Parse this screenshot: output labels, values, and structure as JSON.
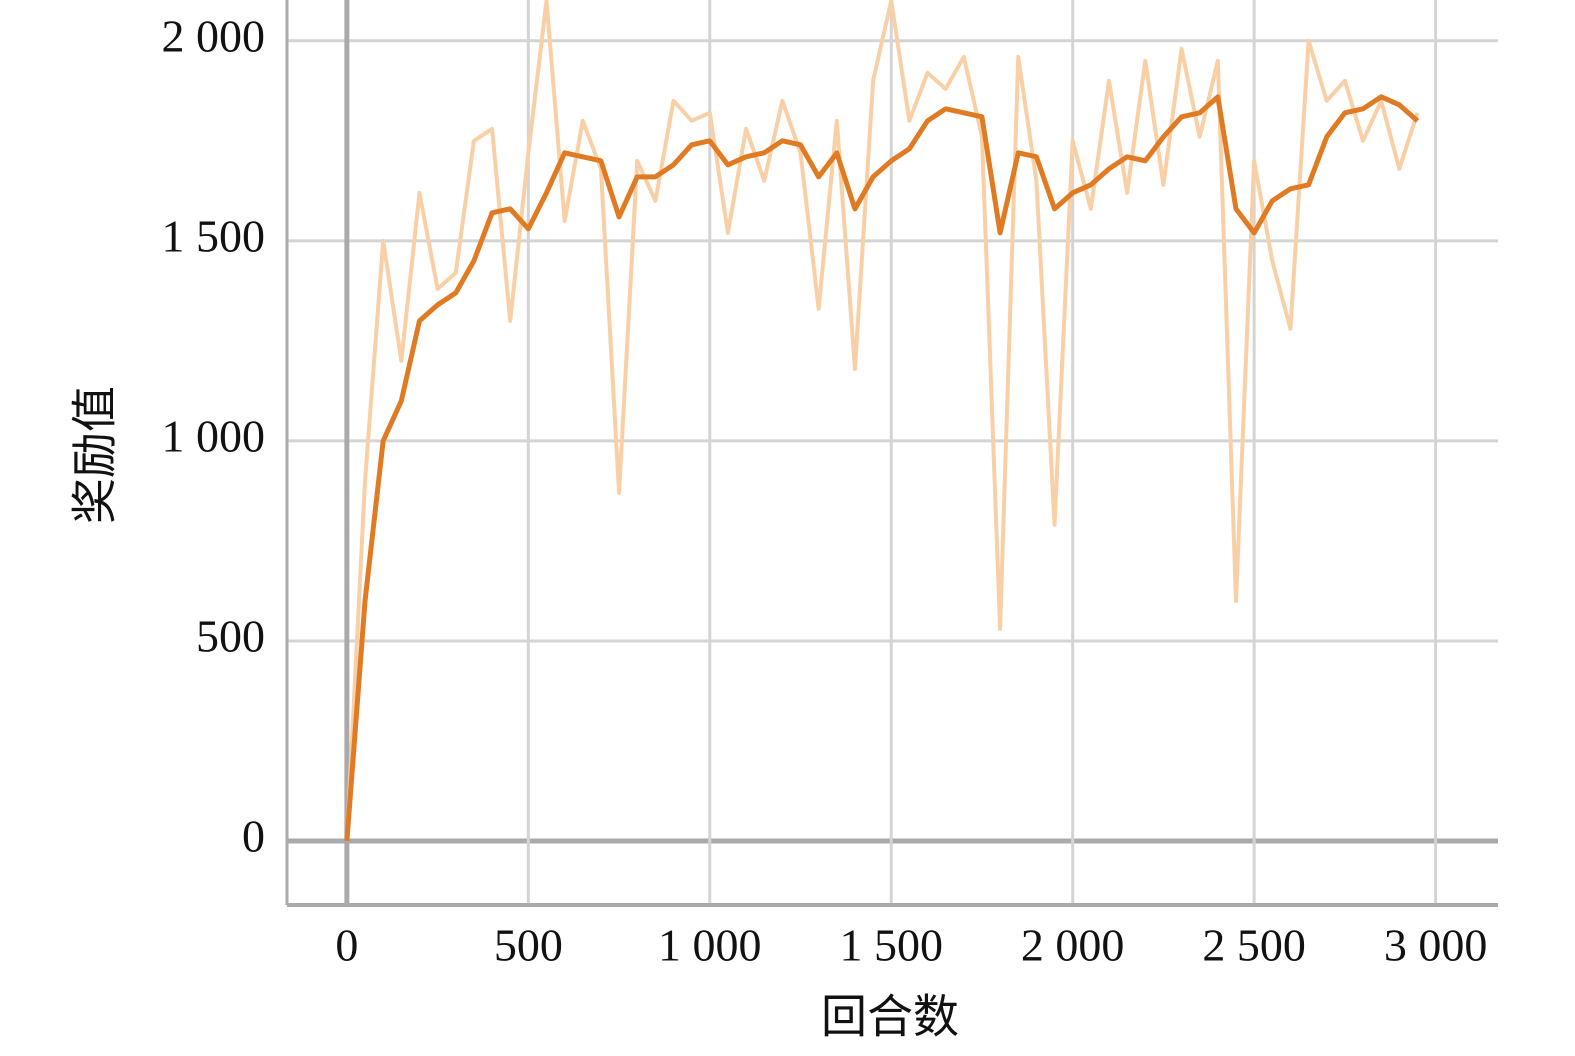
{
  "chart_data": {
    "type": "line",
    "xlabel": "回合数",
    "ylabel": "奖励值",
    "x": [
      0,
      50,
      100,
      150,
      200,
      250,
      300,
      350,
      400,
      450,
      500,
      550,
      600,
      650,
      700,
      750,
      800,
      850,
      900,
      950,
      1000,
      1050,
      1100,
      1150,
      1200,
      1250,
      1300,
      1350,
      1400,
      1450,
      1500,
      1550,
      1600,
      1650,
      1700,
      1750,
      1800,
      1850,
      1900,
      1950,
      2000,
      2050,
      2100,
      2150,
      2200,
      2250,
      2300,
      2350,
      2400,
      2450,
      2500,
      2550,
      2600,
      2650,
      2700,
      2750,
      2800,
      2850,
      2900,
      2950
    ],
    "series": [
      {
        "color": "#f9cfa6",
        "values": [
          0,
          900,
          1500,
          1200,
          1620,
          1380,
          1420,
          1750,
          1780,
          1300,
          1720,
          2100,
          1550,
          1800,
          1680,
          870,
          1700,
          1600,
          1850,
          1800,
          1820,
          1520,
          1780,
          1650,
          1850,
          1720,
          1330,
          1800,
          1180,
          1900,
          2100,
          1800,
          1920,
          1880,
          1960,
          1760,
          530,
          1960,
          1650,
          790,
          1750,
          1580,
          1900,
          1620,
          1950,
          1640,
          1980,
          1760,
          1950,
          600,
          1700,
          1450,
          1280,
          2000,
          1850,
          1900,
          1750,
          1850,
          1680,
          1820
        ]
      },
      {
        "color": "#e07b24",
        "values": [
          0,
          600,
          1000,
          1100,
          1300,
          1340,
          1370,
          1450,
          1570,
          1580,
          1530,
          1620,
          1720,
          1710,
          1700,
          1560,
          1660,
          1660,
          1690,
          1740,
          1750,
          1690,
          1710,
          1720,
          1750,
          1740,
          1660,
          1720,
          1580,
          1660,
          1700,
          1730,
          1800,
          1830,
          1820,
          1810,
          1520,
          1720,
          1710,
          1580,
          1620,
          1640,
          1680,
          1710,
          1700,
          1760,
          1810,
          1820,
          1860,
          1580,
          1520,
          1600,
          1630,
          1640,
          1760,
          1820,
          1830,
          1860,
          1840,
          1800
        ]
      }
    ],
    "xlim": [
      -165,
      3172
    ],
    "ylim": [
      -160,
      2102
    ],
    "xticks": [
      0,
      500,
      {
        "value": 1000,
        "label": "1 000"
      },
      {
        "value": 1500,
        "label": "1 500"
      },
      {
        "value": 2000,
        "label": "2 000"
      },
      {
        "value": 2500,
        "label": "2 500"
      },
      {
        "value": 3000,
        "label": "3 000"
      }
    ],
    "yticks": [
      0,
      500,
      {
        "value": 1000,
        "label": "1 000"
      },
      {
        "value": 1500,
        "label": "1 500"
      },
      {
        "value": 2000,
        "label": "2 000"
      }
    ],
    "grid": true
  }
}
